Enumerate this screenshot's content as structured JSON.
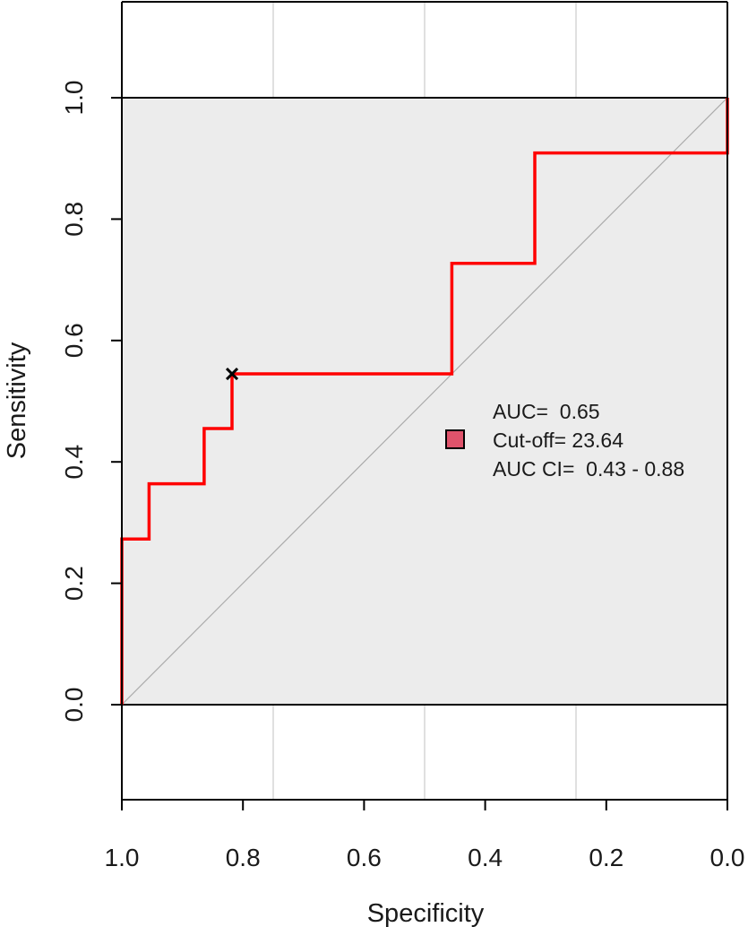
{
  "chart_data": {
    "type": "line",
    "title": "",
    "xlabel": "Specificity",
    "ylabel": "Sensitivity",
    "x_reversed": true,
    "xlim": [
      1.0,
      0.0
    ],
    "ylim": [
      0.0,
      1.0
    ],
    "x_ticks": [
      "1.0",
      "0.8",
      "0.6",
      "0.4",
      "0.2",
      "0.0"
    ],
    "y_ticks": [
      "0.0",
      "0.2",
      "0.4",
      "0.6",
      "0.8",
      "1.0"
    ],
    "grid": true,
    "series": [
      {
        "color": "#ff0000",
        "points": [
          [
            1.0,
            0.0
          ],
          [
            1.0,
            0.273
          ],
          [
            0.955,
            0.273
          ],
          [
            0.955,
            0.364
          ],
          [
            0.864,
            0.364
          ],
          [
            0.864,
            0.455
          ],
          [
            0.818,
            0.455
          ],
          [
            0.818,
            0.545
          ],
          [
            0.455,
            0.545
          ],
          [
            0.455,
            0.727
          ],
          [
            0.318,
            0.727
          ],
          [
            0.318,
            0.909
          ],
          [
            0.0,
            0.909
          ],
          [
            0.0,
            1.0
          ]
        ]
      }
    ],
    "reference_line": [
      [
        1.0,
        0.0
      ],
      [
        0.0,
        1.0
      ]
    ],
    "cutoff_point": [
      0.818,
      0.545
    ],
    "legend": {
      "placement": "center-right",
      "marker_color": "#df536b",
      "lines": [
        "AUC=  0.65",
        "Cut-off= 23.64",
        "AUC CI=  0.43 - 0.88"
      ]
    }
  }
}
